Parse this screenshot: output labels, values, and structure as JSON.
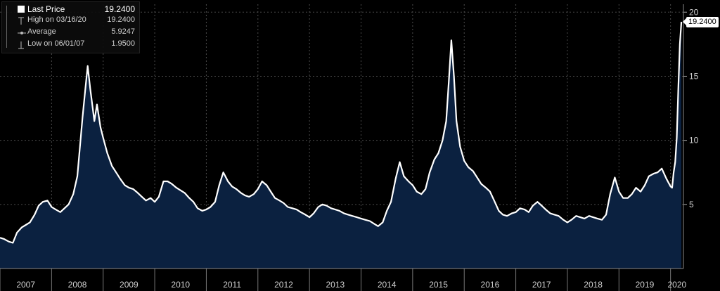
{
  "legend": {
    "last_price_label": "Last Price",
    "last_price_value": "19.2400",
    "high_label": "High on 03/16/20",
    "high_value": "19.2400",
    "average_label": "Average",
    "average_value": "5.9247",
    "low_label": "Low on 06/01/07",
    "low_value": "1.9500"
  },
  "last_value_tag": "19.2400",
  "colors": {
    "background": "#000000",
    "line": "#ffffff",
    "fill": "#0b2140",
    "grid": "#4a4a4a"
  },
  "chart_data": {
    "type": "area",
    "title": "",
    "xlabel": "",
    "ylabel": "",
    "x_ticks": [
      "2007",
      "2008",
      "2009",
      "2010",
      "2011",
      "2012",
      "2013",
      "2014",
      "2015",
      "2016",
      "2017",
      "2018",
      "2019",
      "2020"
    ],
    "y_ticks": [
      5,
      10,
      15,
      20
    ],
    "ylim": [
      0,
      20
    ],
    "xlim": [
      2007.0,
      2020.25
    ],
    "grid": true,
    "legend_position": "top-left",
    "y_axis_side": "right",
    "series": [
      {
        "name": "Last Price",
        "x": [
          2007.0,
          2007.08,
          2007.17,
          2007.25,
          2007.33,
          2007.42,
          2007.5,
          2007.58,
          2007.67,
          2007.75,
          2007.83,
          2007.92,
          2008.0,
          2008.08,
          2008.17,
          2008.25,
          2008.33,
          2008.42,
          2008.5,
          2008.55,
          2008.6,
          2008.65,
          2008.7,
          2008.75,
          2008.83,
          2008.88,
          2008.95,
          2009.0,
          2009.08,
          2009.17,
          2009.25,
          2009.33,
          2009.42,
          2009.5,
          2009.58,
          2009.67,
          2009.75,
          2009.83,
          2009.92,
          2010.0,
          2010.08,
          2010.17,
          2010.25,
          2010.33,
          2010.42,
          2010.5,
          2010.58,
          2010.67,
          2010.75,
          2010.83,
          2010.92,
          2011.0,
          2011.08,
          2011.17,
          2011.25,
          2011.33,
          2011.42,
          2011.5,
          2011.58,
          2011.67,
          2011.75,
          2011.83,
          2011.92,
          2012.0,
          2012.08,
          2012.17,
          2012.25,
          2012.33,
          2012.42,
          2012.5,
          2012.58,
          2012.67,
          2012.75,
          2012.83,
          2012.92,
          2013.0,
          2013.08,
          2013.17,
          2013.25,
          2013.33,
          2013.42,
          2013.5,
          2013.58,
          2013.67,
          2013.75,
          2013.83,
          2013.92,
          2014.0,
          2014.08,
          2014.17,
          2014.25,
          2014.33,
          2014.42,
          2014.5,
          2014.58,
          2014.67,
          2014.75,
          2014.83,
          2014.92,
          2015.0,
          2015.08,
          2015.17,
          2015.25,
          2015.33,
          2015.42,
          2015.5,
          2015.58,
          2015.65,
          2015.7,
          2015.75,
          2015.8,
          2015.85,
          2015.92,
          2016.0,
          2016.08,
          2016.17,
          2016.25,
          2016.33,
          2016.42,
          2016.5,
          2016.58,
          2016.67,
          2016.75,
          2016.83,
          2016.92,
          2017.0,
          2017.08,
          2017.17,
          2017.25,
          2017.33,
          2017.42,
          2017.5,
          2017.58,
          2017.67,
          2017.75,
          2017.83,
          2017.92,
          2018.0,
          2018.08,
          2018.17,
          2018.25,
          2018.33,
          2018.42,
          2018.5,
          2018.58,
          2018.67,
          2018.75,
          2018.83,
          2018.92,
          2019.0,
          2019.08,
          2019.17,
          2019.25,
          2019.33,
          2019.42,
          2019.5,
          2019.58,
          2019.67,
          2019.75,
          2019.83,
          2019.92,
          2020.0,
          2020.03,
          2020.06,
          2020.09,
          2020.12,
          2020.15,
          2020.18,
          2020.21
        ],
        "values": [
          2.4,
          2.3,
          2.1,
          2.0,
          2.8,
          3.2,
          3.4,
          3.6,
          4.2,
          4.9,
          5.2,
          5.3,
          4.8,
          4.6,
          4.4,
          4.7,
          5.0,
          5.8,
          7.2,
          9.5,
          11.8,
          13.8,
          15.8,
          14.0,
          11.5,
          12.8,
          11.0,
          10.2,
          9.0,
          8.0,
          7.5,
          7.0,
          6.5,
          6.3,
          6.2,
          5.9,
          5.6,
          5.3,
          5.5,
          5.2,
          5.6,
          6.8,
          6.8,
          6.6,
          6.3,
          6.1,
          5.9,
          5.5,
          5.2,
          4.7,
          4.5,
          4.6,
          4.8,
          5.2,
          6.5,
          7.5,
          6.8,
          6.4,
          6.2,
          5.9,
          5.7,
          5.6,
          5.8,
          6.2,
          6.8,
          6.5,
          6.0,
          5.5,
          5.3,
          5.1,
          4.8,
          4.7,
          4.6,
          4.4,
          4.2,
          4.0,
          4.3,
          4.8,
          5.0,
          4.9,
          4.7,
          4.6,
          4.5,
          4.3,
          4.2,
          4.1,
          4.0,
          3.9,
          3.8,
          3.7,
          3.5,
          3.3,
          3.6,
          4.5,
          5.2,
          7.0,
          8.3,
          7.2,
          6.8,
          6.5,
          6.0,
          5.8,
          6.2,
          7.5,
          8.5,
          9.0,
          10.0,
          11.5,
          14.5,
          17.8,
          15.0,
          11.5,
          9.5,
          8.4,
          7.9,
          7.6,
          7.1,
          6.6,
          6.3,
          6.0,
          5.3,
          4.5,
          4.2,
          4.1,
          4.3,
          4.4,
          4.7,
          4.6,
          4.4,
          4.9,
          5.2,
          4.9,
          4.6,
          4.3,
          4.2,
          4.1,
          3.8,
          3.6,
          3.8,
          4.1,
          4.0,
          3.9,
          4.1,
          4.0,
          3.9,
          3.8,
          4.2,
          5.8,
          7.1,
          6.0,
          5.5,
          5.5,
          5.8,
          6.3,
          6.0,
          6.5,
          7.2,
          7.4,
          7.5,
          7.8,
          7.0,
          6.4,
          6.3,
          7.5,
          8.3,
          10.2,
          14.0,
          17.5,
          19.24
        ]
      }
    ],
    "last_value": 19.24
  }
}
